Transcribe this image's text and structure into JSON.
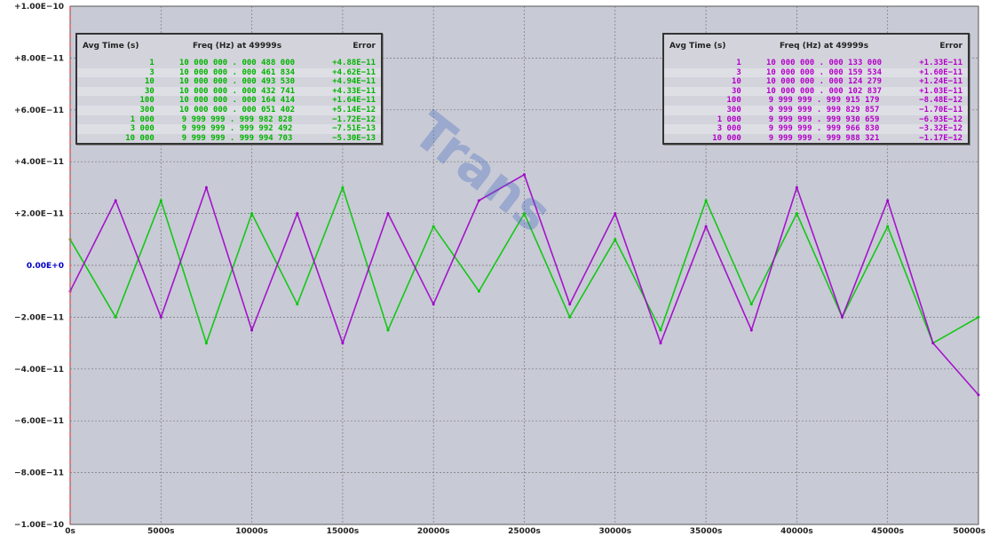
{
  "chart_data": {
    "type": "line",
    "title": "",
    "xlabel": "",
    "ylabel": "",
    "xlim": [
      0,
      50000
    ],
    "ylim": [
      -1e-10,
      1e-10
    ],
    "grid": true,
    "x_ticks": [
      "0s",
      "5000s",
      "10000s",
      "15000s",
      "20000s",
      "25000s",
      "30000s",
      "35000s",
      "40000s",
      "45000s",
      "50000s"
    ],
    "y_ticks": [
      "+1.00E−10",
      "+8.00E−11",
      "+6.00E−11",
      "+4.00E−11",
      "+2.00E−11",
      "0.00E+0",
      "−2.00E−11",
      "−4.00E−11",
      "−6.00E−11",
      "−8.00E−11",
      "−1.00E−10"
    ],
    "series": [
      {
        "color": "#00c800",
        "x": [
          0,
          2500,
          5000,
          7500,
          10000,
          12500,
          15000,
          17500,
          20000,
          22500,
          25000,
          27500,
          30000,
          32500,
          35000,
          37500,
          40000,
          42500,
          45000,
          47500,
          50000
        ],
        "values": [
          1e-11,
          -2e-11,
          2.5e-11,
          -3e-11,
          2e-11,
          -1.5e-11,
          3e-11,
          -2.5e-11,
          1.5e-11,
          -1e-11,
          2e-11,
          -2e-11,
          1e-11,
          -2.5e-11,
          2.5e-11,
          -1.5e-11,
          2e-11,
          -2e-11,
          1.5e-11,
          -3e-11,
          -2e-11
        ]
      },
      {
        "color": "#a000c8",
        "x": [
          0,
          2500,
          5000,
          7500,
          10000,
          12500,
          15000,
          17500,
          20000,
          22500,
          25000,
          27500,
          30000,
          32500,
          35000,
          37500,
          40000,
          42500,
          45000,
          47500,
          50000
        ],
        "values": [
          -1e-11,
          2.5e-11,
          -2e-11,
          3e-11,
          -2.5e-11,
          2e-11,
          -3e-11,
          2e-11,
          -1.5e-11,
          2.5e-11,
          3.5e-11,
          -1.5e-11,
          2e-11,
          -3e-11,
          1.5e-11,
          -2.5e-11,
          3e-11,
          -2e-11,
          2.5e-11,
          -3e-11,
          -5e-11
        ]
      }
    ]
  },
  "green_table": {
    "headers": {
      "avg": "Avg Time (s)",
      "freq": "Freq (Hz) at 49999s",
      "err": "Error"
    },
    "color": "#00b400",
    "rows": [
      {
        "avg": "1",
        "freq": "10 000 000 . 000 488 000",
        "err": "+4.88E−11"
      },
      {
        "avg": "3",
        "freq": "10 000 000 . 000 461 834",
        "err": "+4.62E−11"
      },
      {
        "avg": "10",
        "freq": "10 000 000 . 000 493 530",
        "err": "+4.94E−11"
      },
      {
        "avg": "30",
        "freq": "10 000 000 . 000 432 741",
        "err": "+4.33E−11"
      },
      {
        "avg": "100",
        "freq": "10 000 000 . 000 164 414",
        "err": "+1.64E−11"
      },
      {
        "avg": "300",
        "freq": "10 000 000 . 000 051 402",
        "err": "+5.14E−12"
      },
      {
        "avg": "1 000",
        "freq": "9 999 999 . 999 982 828",
        "err": "−1.72E−12"
      },
      {
        "avg": "3 000",
        "freq": "9 999 999 . 999 992 492",
        "err": "−7.51E−13"
      },
      {
        "avg": "10 000",
        "freq": "9 999 999 . 999 994 703",
        "err": "−5.30E−13"
      }
    ]
  },
  "purple_table": {
    "headers": {
      "avg": "Avg Time (s)",
      "freq": "Freq (Hz) at 49999s",
      "err": "Error"
    },
    "color": "#b400c8",
    "rows": [
      {
        "avg": "1",
        "freq": "10 000 000 . 000 133 000",
        "err": "+1.33E−11"
      },
      {
        "avg": "3",
        "freq": "10 000 000 . 000 159 534",
        "err": "+1.60E−11"
      },
      {
        "avg": "10",
        "freq": "10 000 000 . 000 124 279",
        "err": "+1.24E−11"
      },
      {
        "avg": "30",
        "freq": "10 000 000 . 000 102 837",
        "err": "+1.03E−11"
      },
      {
        "avg": "100",
        "freq": "9 999 999 . 999 915 179",
        "err": "−8.48E−12"
      },
      {
        "avg": "300",
        "freq": "9 999 999 . 999 829 857",
        "err": "−1.70E−11"
      },
      {
        "avg": "1 000",
        "freq": "9 999 999 . 999 930 659",
        "err": "−6.93E−12"
      },
      {
        "avg": "3 000",
        "freq": "9 999 999 . 999 966 830",
        "err": "−3.32E−12"
      },
      {
        "avg": "10 000",
        "freq": "9 999 999 . 999 988 321",
        "err": "−1.17E−12"
      }
    ]
  },
  "colors": {
    "plot_bg": "#c8cad6",
    "grid": "#777777",
    "zero_label": "#0000c8",
    "origin_marker": "#e06060"
  },
  "watermark_text": "Trans"
}
